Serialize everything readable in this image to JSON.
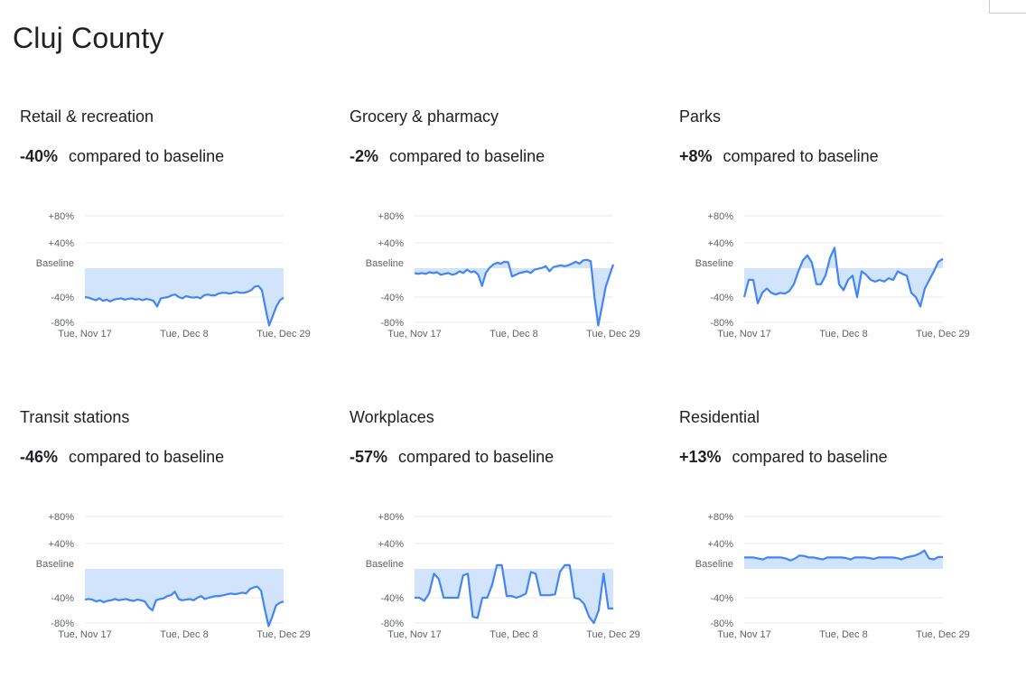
{
  "page": {
    "title": "Cluj County"
  },
  "summary_suffix": "compared to baseline",
  "colors": {
    "line": "#4285f4",
    "fill": "#d2e3fc",
    "grid": "#e8e8e8",
    "axis_text": "#5f6368"
  },
  "chart_data": [
    {
      "type": "area",
      "title": "Retail & recreation",
      "change": "-40%",
      "y_ticks": [
        "+80%",
        "+40%",
        "Baseline",
        "-40%",
        "-80%"
      ],
      "x_ticks": [
        "Tue, Nov 17",
        "Tue, Dec 8",
        "Tue, Dec 29"
      ],
      "ylim": [
        -80,
        80
      ],
      "values": [
        -40,
        -41,
        -43,
        -45,
        -42,
        -46,
        -44,
        -47,
        -44,
        -43,
        -42,
        -44,
        -43,
        -42,
        -44,
        -43,
        -45,
        -43,
        -44,
        -46,
        -55,
        -42,
        -41,
        -40,
        -38,
        -37,
        -40,
        -42,
        -39,
        -40,
        -41,
        -40,
        -42,
        -38,
        -37,
        -38,
        -38,
        -36,
        -35,
        -35,
        -36,
        -35,
        -34,
        -35,
        -35,
        -34,
        -32,
        -28,
        -27,
        -32,
        -58,
        -85,
        -70,
        -55,
        -45,
        -41
      ]
    },
    {
      "type": "area",
      "title": "Grocery & pharmacy",
      "change": "-2%",
      "y_ticks": [
        "+80%",
        "+40%",
        "Baseline",
        "-40%",
        "-80%"
      ],
      "x_ticks": [
        "Tue, Nov 17",
        "Tue, Dec 8",
        "Tue, Dec 29"
      ],
      "ylim": [
        -80,
        80
      ],
      "values": [
        -12,
        -13,
        -12,
        -13,
        -11,
        -12,
        -11,
        -14,
        -13,
        -12,
        -14,
        -13,
        -10,
        -12,
        -8,
        -11,
        -10,
        -14,
        -27,
        -12,
        -6,
        -2,
        0,
        -1,
        2,
        1,
        -16,
        -14,
        -12,
        -11,
        -10,
        -12,
        -8,
        -7,
        -6,
        -4,
        -10,
        -5,
        -4,
        -3,
        -4,
        -3,
        -1,
        2,
        -1,
        5,
        6,
        3,
        -40,
        -85,
        -55,
        -28,
        -15,
        -2
      ]
    },
    {
      "type": "area",
      "title": "Parks",
      "change": "+8%",
      "y_ticks": [
        "+80%",
        "+40%",
        "Baseline",
        "-40%",
        "-80%"
      ],
      "x_ticks": [
        "Tue, Nov 17",
        "Tue, Dec 8",
        "Tue, Dec 29"
      ],
      "ylim": [
        -80,
        80
      ],
      "values": [
        -40,
        -20,
        -20,
        -50,
        -35,
        -30,
        -35,
        -37,
        -35,
        -36,
        -33,
        -25,
        -10,
        5,
        15,
        0,
        -25,
        -25,
        -15,
        10,
        30,
        -25,
        -32,
        -20,
        -15,
        -40,
        -10,
        -14,
        -20,
        -22,
        -20,
        -22,
        -18,
        -20,
        -10,
        -13,
        -15,
        -35,
        -40,
        -55,
        -30,
        -20,
        -10,
        2,
        8
      ]
    },
    {
      "type": "area",
      "title": "Transit stations",
      "change": "-46%",
      "y_ticks": [
        "+80%",
        "+40%",
        "Baseline",
        "-40%",
        "-80%"
      ],
      "x_ticks": [
        "Tue, Nov 17",
        "Tue, Dec 8",
        "Tue, Dec 29"
      ],
      "ylim": [
        -80,
        80
      ],
      "values": [
        -43,
        -42,
        -43,
        -46,
        -44,
        -47,
        -45,
        -44,
        -42,
        -44,
        -43,
        -42,
        -44,
        -45,
        -43,
        -44,
        -46,
        -55,
        -60,
        -44,
        -42,
        -41,
        -38,
        -37,
        -33,
        -42,
        -44,
        -43,
        -42,
        -44,
        -40,
        -38,
        -42,
        -40,
        -39,
        -38,
        -38,
        -37,
        -36,
        -35,
        -36,
        -35,
        -34,
        -35,
        -30,
        -28,
        -27,
        -32,
        -58,
        -85,
        -70,
        -52,
        -48,
        -46
      ]
    },
    {
      "type": "area",
      "title": "Workplaces",
      "change": "-57%",
      "y_ticks": [
        "+80%",
        "+40%",
        "Baseline",
        "-40%",
        "-80%"
      ],
      "x_ticks": [
        "Tue, Nov 17",
        "Tue, Dec 8",
        "Tue, Dec 29"
      ],
      "ylim": [
        -80,
        80
      ],
      "values": [
        -40,
        -40,
        -45,
        -35,
        -12,
        -18,
        -40,
        -40,
        -40,
        -40,
        -14,
        -12,
        -70,
        -72,
        -40,
        -40,
        -25,
        -2,
        -2,
        -38,
        -38,
        -40,
        -38,
        -35,
        -10,
        -12,
        -37,
        -37,
        -37,
        -36,
        -10,
        -2,
        -2,
        -40,
        -42,
        -50,
        -70,
        -80,
        -60,
        -12,
        -57,
        -57
      ]
    },
    {
      "type": "area",
      "title": "Residential",
      "change": "+13%",
      "y_ticks": [
        "+80%",
        "+40%",
        "Baseline",
        "-40%",
        "-80%"
      ],
      "x_ticks": [
        "Tue, Nov 17",
        "Tue, Dec 8",
        "Tue, Dec 29"
      ],
      "ylim": [
        -80,
        80
      ],
      "values": [
        12,
        12,
        12,
        10,
        8,
        12,
        12,
        12,
        12,
        10,
        6,
        10,
        16,
        15,
        12,
        12,
        10,
        8,
        12,
        12,
        12,
        12,
        11,
        8,
        12,
        12,
        12,
        11,
        9,
        12,
        12,
        12,
        12,
        11,
        8,
        12,
        14,
        16,
        20,
        26,
        10,
        8,
        13,
        13
      ]
    }
  ]
}
